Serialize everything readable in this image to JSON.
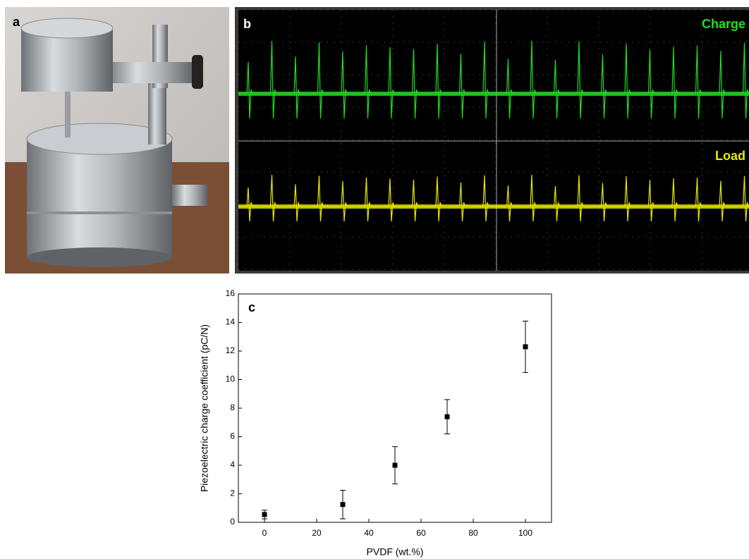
{
  "photo": {
    "label": "a"
  },
  "oscilloscope": {
    "label": "b",
    "traces": [
      {
        "name": "Charge",
        "color": "#22dd22"
      },
      {
        "name": "Load",
        "color": "#e8e800"
      }
    ]
  },
  "chart_data": {
    "type": "scatter",
    "label": "c",
    "xlabel": "PVDF (wt.%)",
    "ylabel": "Piezoelectric charge coefficient (pC/N)",
    "x": [
      0,
      30,
      50,
      70,
      100
    ],
    "values": [
      0.55,
      1.25,
      4.0,
      7.4,
      12.3
    ],
    "errors": [
      0.3,
      1.0,
      1.3,
      1.2,
      1.8
    ],
    "color": "#000000",
    "xlim": [
      -10,
      110
    ],
    "xticks": [
      0,
      20,
      40,
      60,
      80,
      100
    ],
    "ylim": [
      0,
      16
    ],
    "yticks": [
      0,
      2,
      4,
      6,
      8,
      10,
      12,
      14,
      16
    ]
  }
}
